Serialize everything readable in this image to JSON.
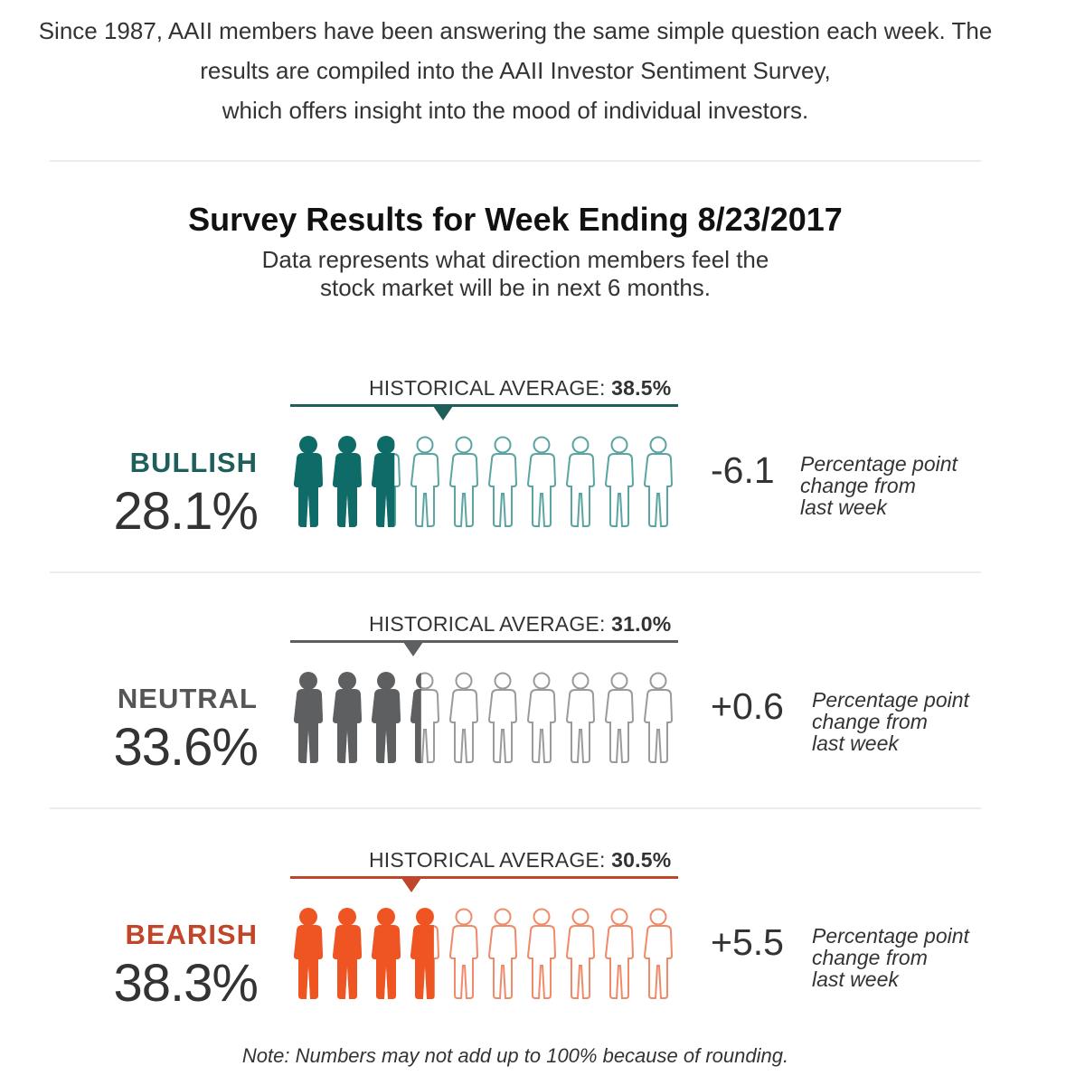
{
  "intro": {
    "line1": "Since 1987, AAII members have been answering the same simple question each week. The",
    "line2": "results are compiled into the AAII Investor Sentiment Survey,",
    "line3": "which offers insight into the mood of individual investors."
  },
  "title": "Survey Results for Week Ending 8/23/2017",
  "subtitle": {
    "line1": "Data represents what direction members feel the",
    "line2": "stock market will be in next 6 months."
  },
  "hist_prefix": "HISTORICAL AVERAGE:",
  "change_text": {
    "line1": "Percentage point",
    "line2": "change from",
    "line3": "last week"
  },
  "categories": [
    {
      "name": "BULLISH",
      "value_label": "28.1%",
      "value": 28.1,
      "historical_label": "38.5%",
      "historical": 38.5,
      "change": "-6.1",
      "color": "#0e6b68",
      "outline": "#5aa5a1"
    },
    {
      "name": "NEUTRAL",
      "value_label": "33.6%",
      "value": 33.6,
      "historical_label": "31.0%",
      "historical": 31.0,
      "change": "+0.6",
      "color": "#5e5f61",
      "outline": "#9a9a9a"
    },
    {
      "name": "BEARISH",
      "value_label": "38.3%",
      "value": 38.3,
      "historical_label": "30.5%",
      "historical": 30.5,
      "change": "+5.5",
      "color": "#ee5523",
      "outline": "#f08a68"
    }
  ],
  "category_label_colors": [
    "#1e5f5c",
    "#555555",
    "#c0452a"
  ],
  "hist_line_colors": [
    "#1e5f5c",
    "#5e5f61",
    "#c0452a"
  ],
  "note": "Note: Numbers may not add up to 100% because of rounding."
}
